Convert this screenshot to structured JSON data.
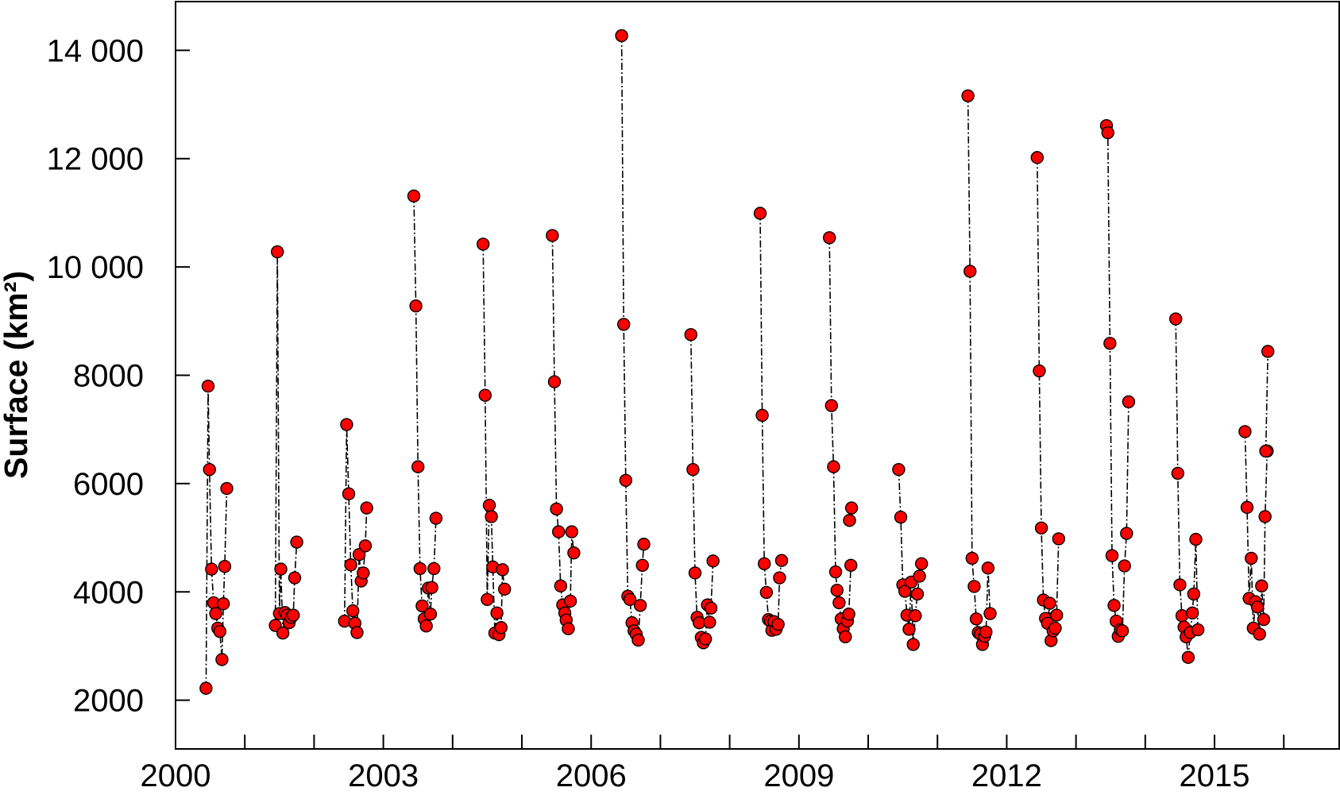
{
  "chart_data": {
    "type": "scatter",
    "ylabel": "Surface (km²)",
    "xlabel": "",
    "xlim": [
      2000.0,
      2016.8
    ],
    "ylim": [
      1100,
      14900
    ],
    "xticks_labeled": [
      2000,
      2003,
      2006,
      2009,
      2012,
      2015
    ],
    "xticks_minor": [
      2001,
      2002,
      2004,
      2005,
      2007,
      2008,
      2010,
      2011,
      2013,
      2014,
      2016
    ],
    "yticks": [
      2000,
      4000,
      6000,
      8000,
      10000,
      12000,
      14000
    ],
    "ytick_labels": [
      "2000",
      "4000",
      "6000",
      "8000",
      "10 000",
      "12 000",
      "14 000"
    ],
    "xtick_labels": [
      "2000",
      "2003",
      "2006",
      "2009",
      "2012",
      "2015"
    ],
    "grid": false,
    "marker_color": "#ff0000",
    "line_color": "#000000",
    "line_style": "dash-dot",
    "series": [
      {
        "x": [
          2000.44,
          2000.47,
          2000.49,
          2000.52,
          2000.55,
          2000.58,
          2000.61,
          2000.64,
          2000.67,
          2000.69,
          2000.71,
          2000.74
        ],
        "y": [
          2220,
          7800,
          6260,
          4420,
          3800,
          3600,
          3330,
          3270,
          2750,
          3780,
          4470,
          5910
        ]
      },
      {
        "x": [
          2001.44,
          2001.47,
          2001.5,
          2001.52,
          2001.55,
          2001.58,
          2001.61,
          2001.64,
          2001.67,
          2001.7,
          2001.72,
          2001.75
        ],
        "y": [
          3380,
          10280,
          3600,
          4420,
          3240,
          3620,
          3570,
          3430,
          3530,
          3570,
          4260,
          4920
        ]
      },
      {
        "x": [
          2002.44,
          2002.47,
          2002.5,
          2002.53,
          2002.56,
          2002.59,
          2002.62,
          2002.65,
          2002.68,
          2002.71,
          2002.74,
          2002.76
        ],
        "y": [
          3460,
          7090,
          5810,
          4500,
          3650,
          3420,
          3250,
          4690,
          4200,
          4350,
          4850,
          5550
        ]
      },
      {
        "x": [
          2003.44,
          2003.47,
          2003.5,
          2003.53,
          2003.56,
          2003.59,
          2003.62,
          2003.65,
          2003.68,
          2003.7,
          2003.73,
          2003.76
        ],
        "y": [
          11310,
          9280,
          6310,
          4430,
          3740,
          3500,
          3370,
          4070,
          3590,
          4080,
          4430,
          5360
        ]
      },
      {
        "x": [
          2004.44,
          2004.47,
          2004.5,
          2004.53,
          2004.56,
          2004.58,
          2004.61,
          2004.64,
          2004.67,
          2004.7,
          2004.72,
          2004.75
        ],
        "y": [
          10420,
          7630,
          3860,
          5600,
          5390,
          4460,
          3240,
          3610,
          3210,
          3340,
          4410,
          4050
        ]
      },
      {
        "x": [
          2005.44,
          2005.47,
          2005.5,
          2005.53,
          2005.56,
          2005.59,
          2005.62,
          2005.64,
          2005.67,
          2005.7,
          2005.72,
          2005.75
        ],
        "y": [
          10580,
          7880,
          5530,
          5110,
          4110,
          3760,
          3610,
          3480,
          3320,
          3830,
          5110,
          4720
        ]
      },
      {
        "x": [
          2006.44,
          2006.47,
          2006.5,
          2006.53,
          2006.56,
          2006.59,
          2006.62,
          2006.65,
          2006.68,
          2006.71,
          2006.74,
          2006.76
        ],
        "y": [
          14270,
          8940,
          6060,
          3920,
          3860,
          3430,
          3280,
          3220,
          3110,
          3750,
          4490,
          4880
        ]
      },
      {
        "x": [
          2007.44,
          2007.47,
          2007.5,
          2007.53,
          2007.56,
          2007.59,
          2007.62,
          2007.65,
          2007.68,
          2007.71,
          2007.73,
          2007.76
        ],
        "y": [
          8750,
          6260,
          4350,
          3530,
          3430,
          3160,
          3060,
          3130,
          3760,
          3440,
          3700,
          4570
        ]
      },
      {
        "x": [
          2008.44,
          2008.47,
          2008.5,
          2008.53,
          2008.56,
          2008.59,
          2008.61,
          2008.64,
          2008.67,
          2008.7,
          2008.72,
          2008.75
        ],
        "y": [
          10990,
          7260,
          4520,
          3990,
          3490,
          3460,
          3290,
          3450,
          3310,
          3400,
          4260,
          4580
        ]
      },
      {
        "x": [
          2009.44,
          2009.47,
          2009.5,
          2009.53,
          2009.55,
          2009.58,
          2009.61,
          2009.64,
          2009.67,
          2009.7,
          2009.72,
          2009.75
        ],
        "y": [
          10540,
          7440,
          6310,
          4370,
          4030,
          3800,
          3500,
          3320,
          3170,
          3460,
          3590,
          4490
        ]
      },
      {
        "x": [
          2009.73,
          2009.76
        ],
        "y": [
          5320,
          5550
        ]
      },
      {
        "x": [
          2010.44,
          2010.47,
          2010.5,
          2010.53,
          2010.56,
          2010.59,
          2010.62,
          2010.65,
          2010.68,
          2010.71,
          2010.74,
          2010.77
        ],
        "y": [
          6260,
          5380,
          4130,
          4010,
          3570,
          3310,
          4180,
          3030,
          3560,
          3960,
          4290,
          4520
        ]
      },
      {
        "x": [
          2011.44,
          2011.47,
          2011.5,
          2011.53,
          2011.56,
          2011.59,
          2011.62,
          2011.65,
          2011.68,
          2011.7,
          2011.73,
          2011.76
        ],
        "y": [
          13160,
          9920,
          4620,
          4100,
          3500,
          3250,
          3220,
          3030,
          3180,
          3260,
          4440,
          3600
        ]
      },
      {
        "x": [
          2012.44,
          2012.47,
          2012.5,
          2012.53,
          2012.56,
          2012.59,
          2012.62,
          2012.64,
          2012.67,
          2012.7,
          2012.72,
          2012.75
        ],
        "y": [
          12020,
          8080,
          5180,
          3850,
          3510,
          3420,
          3790,
          3100,
          3280,
          3330,
          3570,
          4980
        ]
      },
      {
        "x": [
          2013.44,
          2013.46,
          2013.49,
          2013.52,
          2013.55,
          2013.58,
          2013.61,
          2013.64,
          2013.67,
          2013.7,
          2013.73,
          2013.76
        ],
        "y": [
          12610,
          12480,
          8590,
          4670,
          3750,
          3460,
          3180,
          3300,
          3280,
          4480,
          5080,
          7510
        ]
      },
      {
        "x": [
          2014.44,
          2014.47,
          2014.5,
          2014.53,
          2014.56,
          2014.59,
          2014.62,
          2014.65,
          2014.68,
          2014.7,
          2014.73,
          2014.76
        ],
        "y": [
          9040,
          6190,
          4130,
          3560,
          3350,
          3170,
          2790,
          3250,
          3610,
          3960,
          4970,
          3300
        ]
      },
      {
        "x": [
          2015.44,
          2015.47,
          2015.5,
          2015.53,
          2015.56,
          2015.59,
          2015.62,
          2015.65,
          2015.68,
          2015.71,
          2015.73,
          2015.76
        ],
        "y": [
          6960,
          5560,
          3880,
          4620,
          3330,
          3820,
          3720,
          3220,
          4110,
          3490,
          5390,
          6600
        ]
      },
      {
        "x": [
          2015.74,
          2015.77
        ],
        "y": [
          6600,
          8440
        ]
      }
    ]
  }
}
